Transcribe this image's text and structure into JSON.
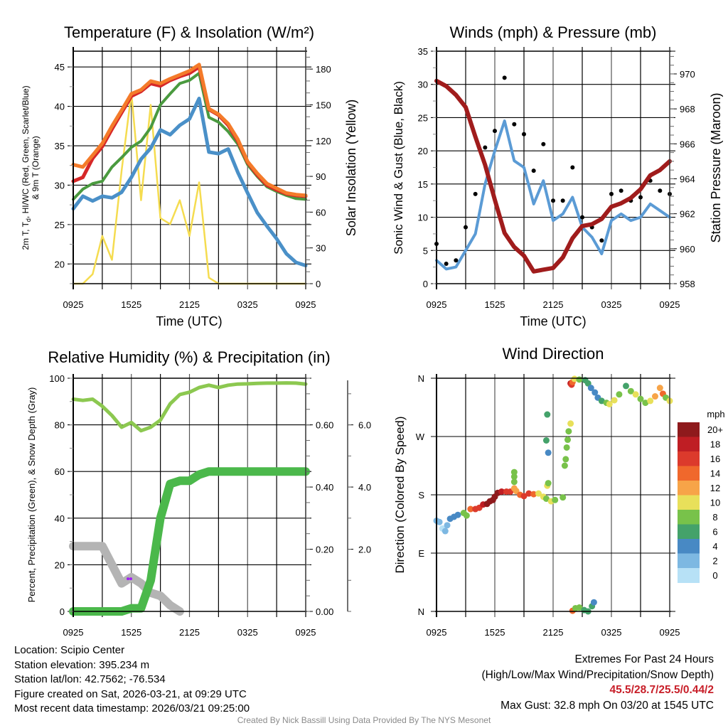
{
  "figure": {
    "info": {
      "location": "Location: Scipio Center",
      "elevation": "Station elevation: 395.234 m",
      "latlon": "Station lat/lon: 42.7562; -76.534",
      "created": "Figure created on Sat, 2026-03-21, at 09:29 UTC",
      "recent": "Most recent data timestamp: 2026/03/21 09:25:00"
    },
    "extremes": {
      "title": "Extremes For Past 24 Hours",
      "subtitle": "(High/Low/Max Wind/Precipitation/Snow Depth)",
      "values": "45.5/28.7/25.5/0.44/2",
      "max_gust": "Max Gust: 32.8 mph On 03/20 at 1545 UTC",
      "values_color": "#c8202a"
    },
    "credit": "Created By Nick Bassill Using Data Provided By The NYS Mesonet"
  },
  "chart_data": [
    {
      "id": "temperature",
      "type": "line",
      "title": "Temperature (F) & Insolation (W/m²)",
      "xlabel": "Time (UTC)",
      "ylabel": "2m T, Td, HI/WC (Red, Green, Scarlet/Blue) & 9m T (Orange)",
      "ylabel2": "Solar Insolation (Yellow)",
      "x_hours": [
        0,
        1,
        2,
        3,
        4,
        5,
        6,
        7,
        8,
        9,
        10,
        11,
        12,
        13,
        14,
        15,
        16,
        17,
        18,
        19,
        20,
        21,
        22,
        23,
        24
      ],
      "x_ticks": [
        "0925",
        "1525",
        "2125",
        "0325",
        "0925"
      ],
      "x_tick_hours": [
        0,
        6,
        12,
        18,
        24
      ],
      "ylim": [
        17.5,
        47.0
      ],
      "yticks": [
        20,
        25,
        30,
        35,
        40,
        45
      ],
      "y2lim": [
        0,
        195
      ],
      "y2ticks": [
        0,
        30,
        60,
        90,
        120,
        150,
        180
      ],
      "grid": true,
      "series": [
        {
          "name": "9m T",
          "color": "#f47b2a",
          "axis": "left",
          "values": [
            32.6,
            32.3,
            33.8,
            35.3,
            37.5,
            39.5,
            41.6,
            42.1,
            43.2,
            42.9,
            43.5,
            44.0,
            44.5,
            45.3,
            39.7,
            39.0,
            37.8,
            35.8,
            33.0,
            31.5,
            30.2,
            29.6,
            29.0,
            28.8,
            28.7
          ]
        },
        {
          "name": "2m T",
          "color": "#d62728",
          "axis": "left",
          "values": [
            30.5,
            31.0,
            33.4,
            34.9,
            37.1,
            39.2,
            41.3,
            41.9,
            42.9,
            42.6,
            43.3,
            43.8,
            44.2,
            45.0,
            39.6,
            38.9,
            37.6,
            35.6,
            32.9,
            31.3,
            30.0,
            29.4,
            28.9,
            28.7,
            28.6
          ]
        },
        {
          "name": "HI/WC",
          "color": "#4a9a3f",
          "axis": "left",
          "values": [
            28.2,
            29.5,
            30.2,
            30.5,
            32.3,
            33.5,
            34.8,
            35.6,
            37.3,
            40.2,
            41.6,
            42.9,
            43.3,
            44.2,
            38.6,
            38.0,
            36.8,
            35.2,
            32.6,
            31.1,
            29.8,
            29.2,
            28.7,
            28.3,
            28.2
          ]
        },
        {
          "name": "Td",
          "color": "#4a90c8",
          "axis": "left",
          "values": [
            27.0,
            28.6,
            28.0,
            28.6,
            28.4,
            29.1,
            31.0,
            33.3,
            34.7,
            37.0,
            36.4,
            37.6,
            38.4,
            41.0,
            34.2,
            34.0,
            34.6,
            31.6,
            29.0,
            26.5,
            24.8,
            23.2,
            21.3,
            20.2,
            19.8
          ]
        },
        {
          "name": "Solar Insolation",
          "color": "#f5dc50",
          "axis": "right",
          "values": [
            0,
            0,
            8,
            40,
            20,
            95,
            160,
            70,
            150,
            55,
            50,
            70,
            40,
            85,
            5,
            0,
            0,
            0,
            0,
            0,
            0,
            0,
            0,
            0,
            0
          ]
        }
      ]
    },
    {
      "id": "winds",
      "type": "line",
      "title": "Winds (mph) & Pressure (mb)",
      "xlabel": "Time (UTC)",
      "ylabel": "Sonic Wind & Gust (Blue, Black)",
      "ylabel2": "Station Pressure (Maroon)",
      "x_hours": [
        0,
        1,
        2,
        3,
        4,
        5,
        6,
        7,
        8,
        9,
        10,
        11,
        12,
        13,
        14,
        15,
        16,
        17,
        18,
        19,
        20,
        21,
        22,
        23,
        24
      ],
      "x_ticks": [
        "0925",
        "1525",
        "2125",
        "0325",
        "0925"
      ],
      "x_tick_hours": [
        0,
        6,
        12,
        18,
        24
      ],
      "ylim": [
        0,
        35
      ],
      "yticks": [
        0,
        5,
        10,
        15,
        20,
        25,
        30,
        35
      ],
      "y2lim": [
        958,
        971.3
      ],
      "y2ticks": [
        958,
        960,
        962,
        964,
        966,
        968,
        970
      ],
      "grid": true,
      "series": [
        {
          "name": "Sonic Wind",
          "color": "#5b9bd5",
          "axis": "left",
          "values": [
            3.5,
            2.2,
            2.5,
            5.0,
            7.5,
            15.0,
            20.0,
            24.5,
            18.5,
            17.5,
            12.0,
            15.5,
            9.5,
            10.5,
            13.0,
            8.5,
            7.0,
            4.5,
            9.5,
            10.5,
            9.5,
            10.0,
            12.0,
            11.0,
            10.0
          ]
        },
        {
          "name": "Gust",
          "color": "#000000",
          "axis": "left",
          "style": "points",
          "values": [
            6.0,
            3.0,
            3.5,
            8.5,
            13.5,
            20.5,
            23.0,
            31.0,
            24.0,
            22.5,
            17.0,
            21.0,
            12.5,
            12.5,
            17.5,
            10.0,
            8.5,
            6.5,
            13.5,
            14.0,
            12.5,
            13.0,
            15.5,
            14.0,
            13.5
          ]
        },
        {
          "name": "Station Pressure",
          "color": "#a01c1c",
          "axis": "right",
          "values": [
            969.6,
            969.3,
            968.8,
            968.1,
            966.4,
            964.8,
            962.8,
            960.9,
            960.1,
            959.6,
            958.7,
            958.8,
            958.9,
            959.5,
            960.6,
            961.3,
            961.4,
            961.7,
            962.4,
            962.6,
            962.9,
            963.4,
            964.2,
            964.5,
            965.0
          ]
        }
      ]
    },
    {
      "id": "humidity",
      "type": "line",
      "title": "Relative Humidity (%) & Precipitation (in)",
      "ylabel": "Percent, Precipitation (Green), & Snow Depth (Gray)",
      "x_hours": [
        0,
        1,
        2,
        3,
        4,
        5,
        6,
        7,
        8,
        9,
        10,
        11,
        12,
        13,
        14,
        15,
        16,
        17,
        18,
        19,
        20,
        21,
        22,
        23,
        24
      ],
      "x_ticks": [
        "0925",
        "1525",
        "2125",
        "0325",
        "0925"
      ],
      "x_tick_hours": [
        0,
        6,
        12,
        18,
        24
      ],
      "ylim": [
        0,
        100
      ],
      "yticks": [
        0,
        20,
        40,
        60,
        80,
        100
      ],
      "y2lim": [
        0,
        0.75
      ],
      "y2ticks": [
        "0.00",
        "0.20",
        "0.40",
        "0.60"
      ],
      "y2tick_values": [
        0,
        0.2,
        0.4,
        0.6
      ],
      "y3lim": [
        0,
        7.5
      ],
      "y3ticks": [
        "2.0",
        "4.0",
        "6.0"
      ],
      "y3tick_values": [
        2,
        4,
        6
      ],
      "grid": true,
      "series": [
        {
          "name": "Relative Humidity",
          "color": "#8cc850",
          "axis": "left",
          "width": "thin",
          "values": [
            91,
            90.5,
            91,
            88,
            84,
            79,
            81,
            77.5,
            79,
            82,
            89,
            93,
            94,
            96,
            97,
            96,
            97,
            97.5,
            97.6,
            97.8,
            97.9,
            97.9,
            98,
            97.9,
            97.5
          ]
        },
        {
          "name": "Precipitation",
          "color": "#4bb84b",
          "axis": "precip",
          "width": "thick",
          "values": [
            0.0,
            0.0,
            0.0,
            0.0,
            0.0,
            0.0,
            0.01,
            0.01,
            0.1,
            0.3,
            0.41,
            0.42,
            0.42,
            0.44,
            0.45,
            0.45,
            0.45,
            0.45,
            0.45,
            0.45,
            0.45,
            0.45,
            0.45,
            0.45,
            0.45
          ]
        },
        {
          "name": "Snow Depth",
          "color": "#b4b4b4",
          "axis": "snow",
          "width": "thick",
          "values": [
            2.1,
            2.1,
            2.1,
            2.1,
            1.5,
            0.9,
            1.1,
            0.9,
            0.6,
            0.5,
            0.2,
            0.0,
            null,
            null,
            null,
            null,
            null,
            null,
            null,
            null,
            null,
            null,
            null,
            null,
            null
          ]
        }
      ],
      "markers": [
        {
          "name": "purple-marker",
          "color": "#a020f0",
          "hour": 5.8,
          "value": 14
        }
      ]
    },
    {
      "id": "wind_direction",
      "type": "scatter",
      "title": "Wind Direction",
      "ylabel": "Direction (Colored By Speed)",
      "x_ticks": [
        "0925",
        "1525",
        "2125",
        "0325",
        "0925"
      ],
      "x_tick_hours": [
        0,
        6,
        12,
        18,
        24
      ],
      "ylim": [
        0,
        360
      ],
      "yticks": [
        "N",
        "E",
        "S",
        "W",
        "N"
      ],
      "ytick_values": [
        0,
        90,
        180,
        270,
        360
      ],
      "grid": true,
      "legend": {
        "title": "mph",
        "labels": [
          "20+",
          "18",
          "16",
          "14",
          "12",
          "10",
          "8",
          "6",
          "4",
          "2",
          "0"
        ],
        "colors": [
          "#8e1a1c",
          "#bf1e24",
          "#dc3a2c",
          "#f0682c",
          "#f7a448",
          "#e8e05a",
          "#78c24a",
          "#44a26a",
          "#4889c4",
          "#7db8e2",
          "#b7e1f6"
        ],
        "placement": "right"
      },
      "points": [
        [
          0.0,
          140,
          3
        ],
        [
          0.3,
          138,
          2
        ],
        [
          0.6,
          128,
          1
        ],
        [
          0.9,
          124,
          2
        ],
        [
          1.1,
          133,
          2
        ],
        [
          1.4,
          143,
          4
        ],
        [
          1.8,
          146,
          5
        ],
        [
          2.2,
          149,
          5
        ],
        [
          2.8,
          152,
          9
        ],
        [
          3.1,
          148,
          8
        ],
        [
          3.5,
          158,
          14
        ],
        [
          4.0,
          158,
          16
        ],
        [
          4.4,
          160,
          17
        ],
        [
          4.8,
          165,
          19
        ],
        [
          5.2,
          166,
          20
        ],
        [
          5.5,
          170,
          20
        ],
        [
          5.8,
          172,
          21
        ],
        [
          6.0,
          177,
          20
        ],
        [
          6.3,
          183,
          20
        ],
        [
          6.7,
          185,
          18
        ],
        [
          7.2,
          185,
          17
        ],
        [
          7.6,
          185,
          16
        ],
        [
          8.0,
          190,
          13
        ],
        [
          8.2,
          186,
          12
        ],
        [
          8.6,
          180,
          15
        ],
        [
          9.0,
          178,
          16
        ],
        [
          9.5,
          182,
          17
        ],
        [
          10.0,
          181,
          14
        ],
        [
          10.5,
          182,
          11
        ],
        [
          8.0,
          215,
          8
        ],
        [
          8.0,
          208,
          8
        ],
        [
          8.0,
          200,
          8
        ],
        [
          11.0,
          177,
          10
        ],
        [
          11.3,
          174,
          9
        ],
        [
          11.8,
          170,
          11
        ],
        [
          12.2,
          172,
          9
        ],
        [
          13.0,
          176,
          9
        ],
        [
          11.4,
          194,
          10
        ],
        [
          11.5,
          245,
          4
        ],
        [
          11.3,
          264,
          6
        ],
        [
          11.4,
          304,
          6
        ],
        [
          11.5,
          198,
          9
        ],
        [
          13.2,
          225,
          9
        ],
        [
          13.3,
          235,
          8
        ],
        [
          13.4,
          253,
          8
        ],
        [
          13.5,
          265,
          8
        ],
        [
          13.6,
          278,
          8
        ],
        [
          13.8,
          290,
          10
        ],
        [
          13.8,
          352,
          18
        ],
        [
          13.9,
          350,
          16
        ],
        [
          14.0,
          354,
          14
        ],
        [
          14.2,
          359,
          11
        ],
        [
          14.7,
          358,
          8
        ],
        [
          15.3,
          357,
          7
        ],
        [
          15.6,
          352,
          6
        ],
        [
          15.9,
          345,
          5
        ],
        [
          16.3,
          338,
          4
        ],
        [
          16.6,
          330,
          4
        ],
        [
          17.0,
          325,
          6
        ],
        [
          17.5,
          322,
          8
        ],
        [
          17.8,
          320,
          11
        ],
        [
          18.3,
          326,
          10
        ],
        [
          18.8,
          335,
          8
        ],
        [
          19.5,
          348,
          7
        ],
        [
          20.0,
          340,
          8
        ],
        [
          20.5,
          335,
          10
        ],
        [
          21.0,
          328,
          9
        ],
        [
          21.5,
          322,
          8
        ],
        [
          22.0,
          325,
          10
        ],
        [
          22.5,
          332,
          12
        ],
        [
          23.0,
          345,
          13
        ],
        [
          23.3,
          336,
          15
        ],
        [
          23.6,
          330,
          8
        ],
        [
          24.0,
          325,
          10
        ],
        [
          14.0,
          1,
          15
        ],
        [
          14.3,
          5,
          8
        ],
        [
          14.7,
          6,
          8
        ],
        [
          15.2,
          2,
          6
        ],
        [
          15.6,
          0,
          6
        ],
        [
          16.0,
          8,
          6
        ],
        [
          16.2,
          14,
          4
        ]
      ]
    }
  ]
}
